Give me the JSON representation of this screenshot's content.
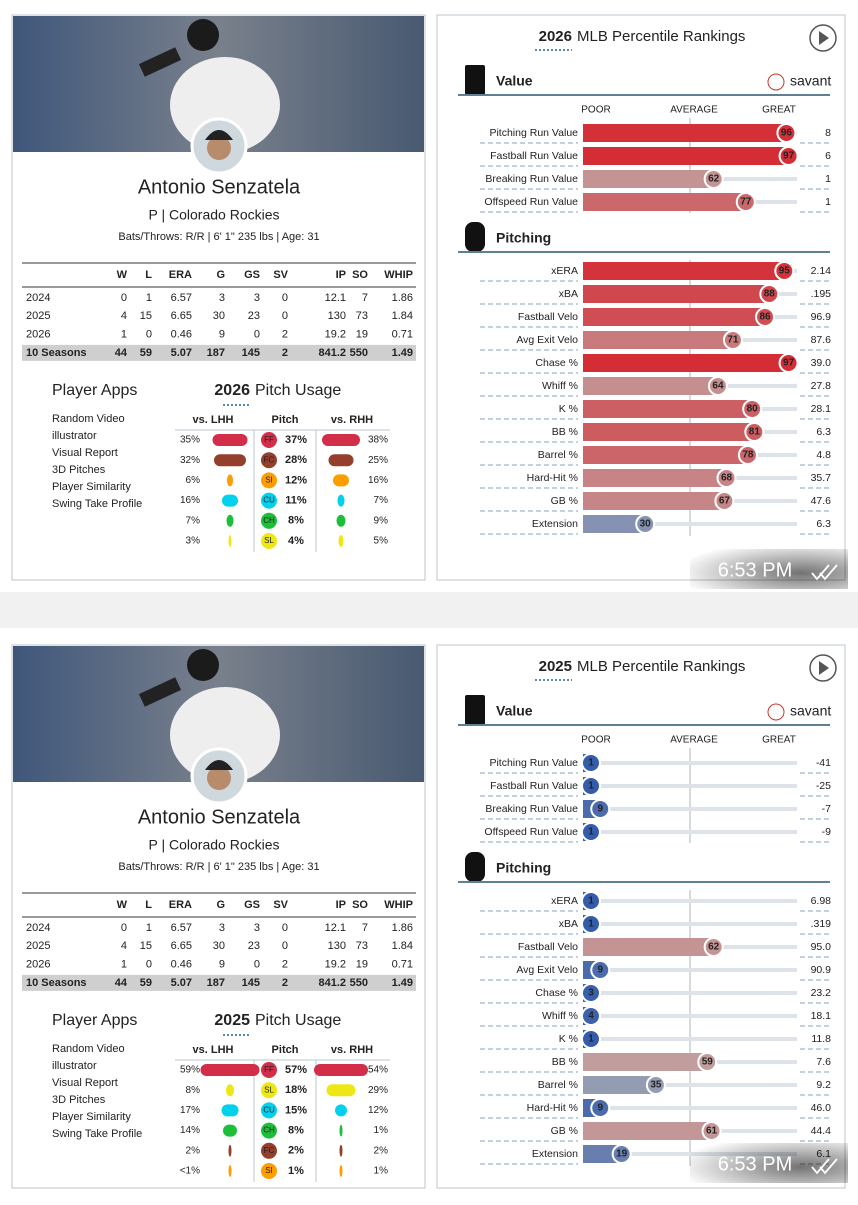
{
  "messages": [
    {
      "player": {
        "name": "Antonio Senzatela",
        "team_line": "P | Colorado Rockies",
        "bio": "Bats/Throws: R/R | 6' 1\" 235 lbs | Age: 31"
      },
      "stats": {
        "headers": [
          "W",
          "L",
          "ERA",
          "G",
          "GS",
          "SV",
          "IP",
          "SO",
          "WHIP"
        ],
        "rows": [
          [
            "2024",
            "0",
            "1",
            "6.57",
            "3",
            "3",
            "0",
            "12.1",
            "7",
            "1.86"
          ],
          [
            "2025",
            "4",
            "15",
            "6.65",
            "30",
            "23",
            "0",
            "130",
            "73",
            "1.84"
          ],
          [
            "2026",
            "1",
            "0",
            "0.46",
            "9",
            "0",
            "2",
            "19.2",
            "19",
            "0.71"
          ],
          [
            "10 Seasons",
            "44",
            "59",
            "5.07",
            "187",
            "145",
            "2",
            "841.2",
            "550",
            "1.49"
          ]
        ]
      },
      "apps": {
        "title": "Player Apps",
        "links": [
          "Random Video",
          "illustrator",
          "Visual Report",
          "3D Pitches",
          "Player Similarity",
          "Swing Take Profile"
        ]
      },
      "usage": {
        "year": "2026",
        "title": "Pitch Usage",
        "headers": [
          "vs. LHH",
          "Pitch",
          "vs. RHH"
        ],
        "rows": [
          {
            "lhh": "35%",
            "pitch": "FF",
            "pct": "37%",
            "rhh": "38%",
            "color": "#d22d49"
          },
          {
            "lhh": "32%",
            "pitch": "FC",
            "pct": "28%",
            "rhh": "25%",
            "color": "#933f2c"
          },
          {
            "lhh": "6%",
            "pitch": "SI",
            "pct": "12%",
            "rhh": "16%",
            "color": "#fe9d00"
          },
          {
            "lhh": "16%",
            "pitch": "CU",
            "pct": "11%",
            "rhh": "7%",
            "color": "#00d1ed"
          },
          {
            "lhh": "7%",
            "pitch": "CH",
            "pct": "8%",
            "rhh": "9%",
            "color": "#1dbe3a"
          },
          {
            "lhh": "3%",
            "pitch": "SL",
            "pct": "4%",
            "rhh": "5%",
            "color": "#eee716"
          }
        ]
      },
      "rankings": {
        "year": "2026",
        "title": "MLB Percentile Rankings",
        "scale": [
          "POOR",
          "AVERAGE",
          "GREAT"
        ],
        "brand": "savant",
        "sections": [
          {
            "title": "Value",
            "rows": [
              {
                "label": "Pitching Run Value",
                "percentile": 96,
                "value": "8"
              },
              {
                "label": "Fastball Run Value",
                "percentile": 97,
                "value": "6"
              },
              {
                "label": "Breaking Run Value",
                "percentile": 62,
                "value": "1"
              },
              {
                "label": "Offspeed Run Value",
                "percentile": 77,
                "value": "1"
              }
            ]
          },
          {
            "title": "Pitching",
            "rows": [
              {
                "label": "xERA",
                "percentile": 95,
                "value": "2.14"
              },
              {
                "label": "xBA",
                "percentile": 88,
                "value": ".195"
              },
              {
                "label": "Fastball Velo",
                "percentile": 86,
                "value": "96.9"
              },
              {
                "label": "Avg Exit Velo",
                "percentile": 71,
                "value": "87.6"
              },
              {
                "label": "Chase %",
                "percentile": 97,
                "value": "39.0"
              },
              {
                "label": "Whiff %",
                "percentile": 64,
                "value": "27.8"
              },
              {
                "label": "K %",
                "percentile": 80,
                "value": "28.1"
              },
              {
                "label": "BB %",
                "percentile": 81,
                "value": "6.3"
              },
              {
                "label": "Barrel %",
                "percentile": 78,
                "value": "4.8"
              },
              {
                "label": "Hard-Hit %",
                "percentile": 68,
                "value": "35.7"
              },
              {
                "label": "GB %",
                "percentile": 67,
                "value": "47.6"
              },
              {
                "label": "Extension",
                "percentile": 30,
                "value": "6.3"
              }
            ]
          }
        ]
      },
      "time": "6:53 PM"
    },
    {
      "player": {
        "name": "Antonio Senzatela",
        "team_line": "P | Colorado Rockies",
        "bio": "Bats/Throws: R/R | 6' 1\" 235 lbs | Age: 31"
      },
      "stats": {
        "headers": [
          "W",
          "L",
          "ERA",
          "G",
          "GS",
          "SV",
          "IP",
          "SO",
          "WHIP"
        ],
        "rows": [
          [
            "2024",
            "0",
            "1",
            "6.57",
            "3",
            "3",
            "0",
            "12.1",
            "7",
            "1.86"
          ],
          [
            "2025",
            "4",
            "15",
            "6.65",
            "30",
            "23",
            "0",
            "130",
            "73",
            "1.84"
          ],
          [
            "2026",
            "1",
            "0",
            "0.46",
            "9",
            "0",
            "2",
            "19.2",
            "19",
            "0.71"
          ],
          [
            "10 Seasons",
            "44",
            "59",
            "5.07",
            "187",
            "145",
            "2",
            "841.2",
            "550",
            "1.49"
          ]
        ]
      },
      "apps": {
        "title": "Player Apps",
        "links": [
          "Random Video",
          "illustrator",
          "Visual Report",
          "3D Pitches",
          "Player Similarity",
          "Swing Take Profile"
        ]
      },
      "usage": {
        "year": "2025",
        "title": "Pitch Usage",
        "headers": [
          "vs. LHH",
          "Pitch",
          "vs. RHH"
        ],
        "rows": [
          {
            "lhh": "59%",
            "pitch": "FF",
            "pct": "57%",
            "rhh": "54%",
            "color": "#d22d49"
          },
          {
            "lhh": "8%",
            "pitch": "SL",
            "pct": "18%",
            "rhh": "29%",
            "color": "#eee716"
          },
          {
            "lhh": "17%",
            "pitch": "CU",
            "pct": "15%",
            "rhh": "12%",
            "color": "#00d1ed"
          },
          {
            "lhh": "14%",
            "pitch": "CH",
            "pct": "8%",
            "rhh": "1%",
            "color": "#1dbe3a"
          },
          {
            "lhh": "2%",
            "pitch": "FC",
            "pct": "2%",
            "rhh": "2%",
            "color": "#933f2c"
          },
          {
            "lhh": "<1%",
            "pitch": "SI",
            "pct": "1%",
            "rhh": "1%",
            "color": "#fe9d00"
          }
        ]
      },
      "rankings": {
        "year": "2025",
        "title": "MLB Percentile Rankings",
        "scale": [
          "POOR",
          "AVERAGE",
          "GREAT"
        ],
        "brand": "savant",
        "sections": [
          {
            "title": "Value",
            "rows": [
              {
                "label": "Pitching Run Value",
                "percentile": 1,
                "value": "-41"
              },
              {
                "label": "Fastball Run Value",
                "percentile": 1,
                "value": "-25"
              },
              {
                "label": "Breaking Run Value",
                "percentile": 9,
                "value": "-7"
              },
              {
                "label": "Offspeed Run Value",
                "percentile": 1,
                "value": "-9"
              }
            ]
          },
          {
            "title": "Pitching",
            "rows": [
              {
                "label": "xERA",
                "percentile": 1,
                "value": "6.98"
              },
              {
                "label": "xBA",
                "percentile": 1,
                "value": ".319"
              },
              {
                "label": "Fastball Velo",
                "percentile": 62,
                "value": "95.0"
              },
              {
                "label": "Avg Exit Velo",
                "percentile": 9,
                "value": "90.9"
              },
              {
                "label": "Chase %",
                "percentile": 3,
                "value": "23.2"
              },
              {
                "label": "Whiff %",
                "percentile": 4,
                "value": "18.1"
              },
              {
                "label": "K %",
                "percentile": 1,
                "value": "11.8"
              },
              {
                "label": "BB %",
                "percentile": 59,
                "value": "7.6"
              },
              {
                "label": "Barrel %",
                "percentile": 35,
                "value": "9.2"
              },
              {
                "label": "Hard-Hit %",
                "percentile": 9,
                "value": "46.0"
              },
              {
                "label": "GB %",
                "percentile": 61,
                "value": "44.4"
              },
              {
                "label": "Extension",
                "percentile": 19,
                "value": "6.1"
              }
            ]
          }
        ]
      },
      "time": "6:53 PM"
    }
  ]
}
